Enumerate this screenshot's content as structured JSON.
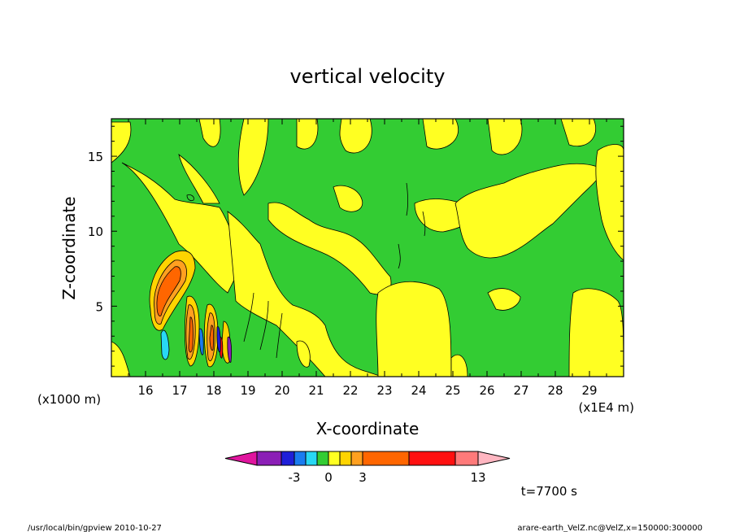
{
  "chart_data": {
    "type": "heatmap",
    "title": "vertical velocity",
    "xlabel": "X-coordinate",
    "ylabel": "Z-coordinate",
    "x_scale_label_left": "(x1000 m)",
    "x_scale_label_right": "(x1E4 m)",
    "x_ticks": [
      "16",
      "17",
      "18",
      "19",
      "20",
      "21",
      "22",
      "23",
      "24",
      "25",
      "26",
      "27",
      "28",
      "29"
    ],
    "x_tick_values": [
      16,
      17,
      18,
      19,
      20,
      21,
      22,
      23,
      24,
      25,
      26,
      27,
      28,
      29
    ],
    "y_ticks": [
      "5",
      "10",
      "15"
    ],
    "y_tick_values": [
      5,
      10,
      15
    ],
    "xlim": [
      15,
      30
    ],
    "ylim": [
      0.3,
      17.5
    ],
    "colorbar": {
      "labels": [
        "-3",
        "0",
        "3",
        "13"
      ],
      "label_values": [
        -3,
        0,
        3,
        13
      ],
      "colors": [
        "#e0159e",
        "#8b1fb6",
        "#1f1fd8",
        "#1a7cf0",
        "#28d8f4",
        "#33cc33",
        "#ffff22",
        "#ffd400",
        "#ffa020",
        "#ff6600",
        "#ff1010",
        "#ff7a7a",
        "#ffb6c1"
      ]
    },
    "annotation_time": "t=7700 s"
  },
  "footer": {
    "left": "/usr/local/bin/gpview   2010-10-27",
    "right": "arare-earth_VelZ.nc@VelZ,x=150000:300000"
  }
}
